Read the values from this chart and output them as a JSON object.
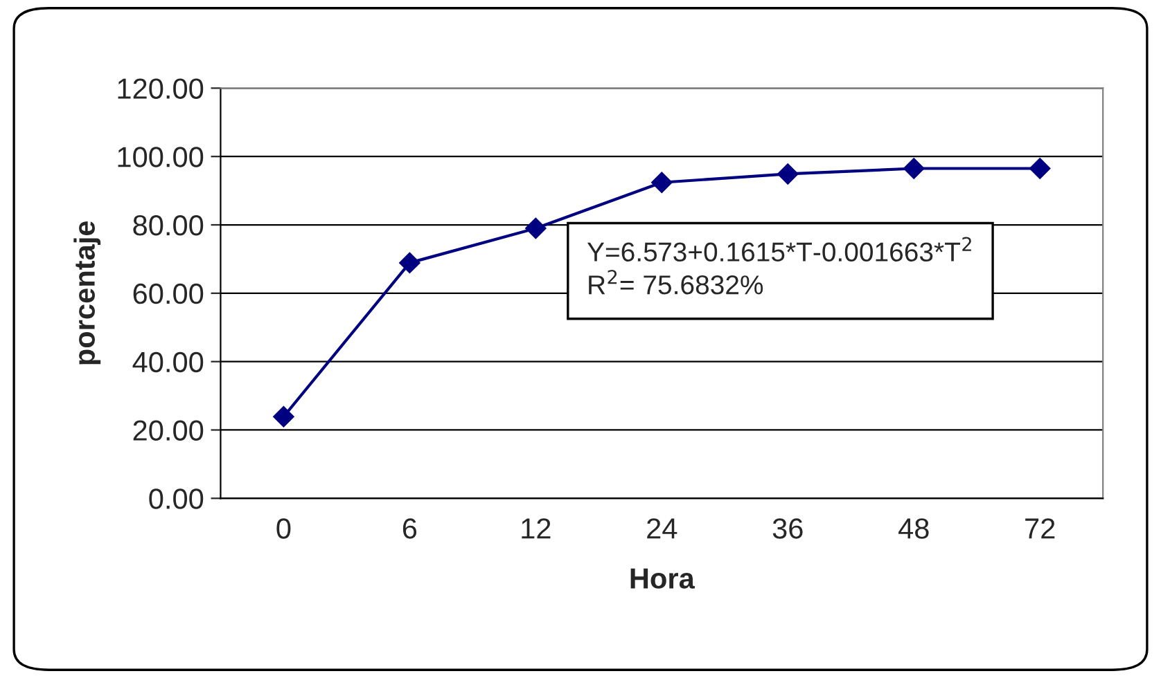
{
  "chart_data": {
    "type": "line",
    "xlabel": "Hora",
    "ylabel": "porcentaje",
    "categories": [
      "0",
      "6",
      "12",
      "24",
      "36",
      "48",
      "72"
    ],
    "series": [
      {
        "color": "#000080",
        "values": [
          23.9,
          68.9,
          79.0,
          92.4,
          94.9,
          96.5,
          96.5
        ]
      }
    ],
    "ylim": [
      0,
      120
    ],
    "yticks": [
      {
        "value": 0,
        "label": "0.00"
      },
      {
        "value": 20,
        "label": "20.00"
      },
      {
        "value": 40,
        "label": "40.00"
      },
      {
        "value": 60,
        "label": "60.00"
      },
      {
        "value": 80,
        "label": "80.00"
      },
      {
        "value": 100,
        "label": "100.00"
      },
      {
        "value": 120,
        "label": "120.00"
      }
    ],
    "grid": "y",
    "marker": "diamond",
    "line_style": "solid",
    "legend": false,
    "annotations": [
      "Y=6.573+0.1615*T-0.001663*T$^{2}$\nR$^{2}$= 75.6832%"
    ]
  }
}
